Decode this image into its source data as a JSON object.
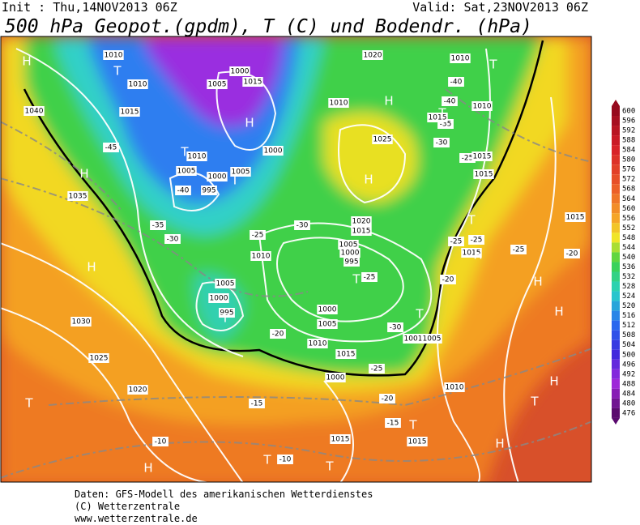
{
  "header": {
    "init": "Init : Thu,14NOV2013 06Z",
    "valid": "Valid: Sat,23NOV2013 06Z",
    "title": "500 hPa Geopot.(gpdm), T (C) und Bodendr. (hPa)"
  },
  "colorbar": {
    "labels": [
      "600",
      "596",
      "592",
      "588",
      "584",
      "580",
      "576",
      "572",
      "568",
      "564",
      "560",
      "556",
      "552",
      "548",
      "544",
      "540",
      "536",
      "532",
      "528",
      "524",
      "520",
      "516",
      "512",
      "508",
      "504",
      "500",
      "496",
      "492",
      "488",
      "484",
      "480",
      "476"
    ]
  },
  "map": {
    "pressure_centers": [
      "H",
      "T",
      "H",
      "T",
      "H",
      "T",
      "H",
      "T",
      "H",
      "T",
      "T",
      "H",
      "T",
      "H",
      "H",
      "T",
      "T",
      "H",
      "H",
      "T",
      "T",
      "T",
      "H",
      "H",
      "T",
      "T"
    ],
    "temperature_labels": [
      "-45",
      "-40",
      "-35",
      "-30",
      "-25",
      "-30",
      "-20",
      "-25",
      "-20",
      "-15",
      "-10",
      "-10",
      "-15",
      "-40",
      "-40",
      "-35",
      "-30",
      "-25",
      "-20",
      "-20",
      "-25",
      "-25",
      "-25",
      "-25",
      "-30"
    ],
    "isobar_labels": [
      "1020",
      "1010",
      "1010",
      "1010",
      "1015",
      "1025",
      "1015",
      "1015",
      "1015",
      "1020",
      "1015",
      "1005",
      "1000",
      "995",
      "1010",
      "1005",
      "1000",
      "995",
      "1030",
      "1025",
      "1020",
      "1000",
      "1005",
      "1010",
      "1015",
      "1001",
      "1005",
      "1010",
      "1000",
      "1015",
      "1015",
      "1035",
      "1005",
      "1000",
      "995",
      "1010",
      "1005",
      "1000",
      "1015",
      "1010",
      "1010",
      "1015",
      "1040",
      "1005",
      "1000",
      "1015"
    ]
  },
  "footer": {
    "lines": [
      "Daten: GFS-Modell des amerikanischen Wetterdienstes",
      "(C) Wetterzentrale",
      "www.wetterzentrale.de"
    ]
  }
}
